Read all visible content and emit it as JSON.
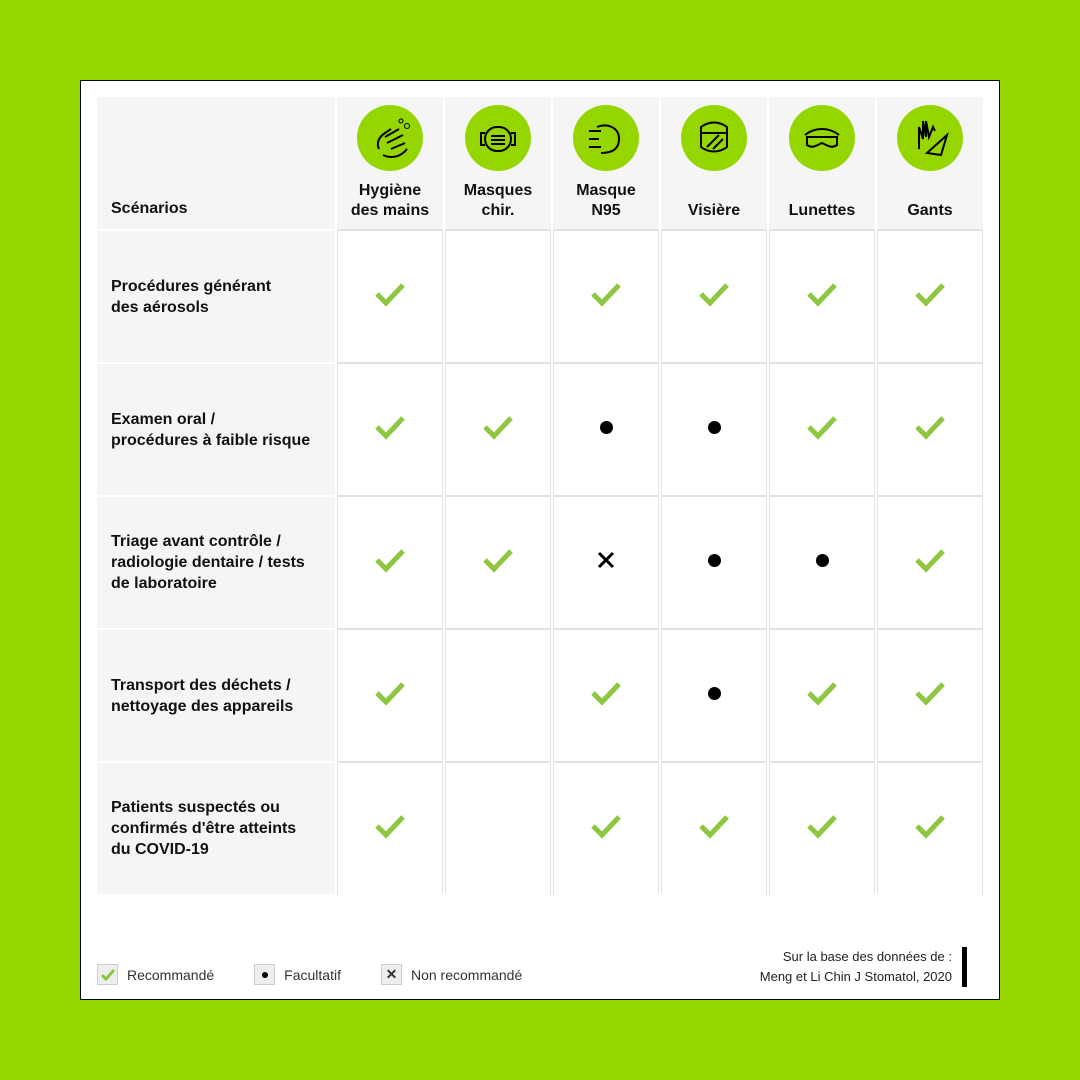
{
  "colors": {
    "accent": "#95d600",
    "check": "#8dc63f"
  },
  "header": {
    "scenarios": "Scénarios",
    "columns": [
      {
        "label1": "Hygiène",
        "label2": "des mains",
        "icon": "hand-wash-icon"
      },
      {
        "label1": "Masques",
        "label2": "chir.",
        "icon": "surgical-mask-icon"
      },
      {
        "label1": "Masque",
        "label2": "N95",
        "icon": "n95-mask-icon"
      },
      {
        "label1": "",
        "label2": "Visière",
        "icon": "face-shield-icon"
      },
      {
        "label1": "",
        "label2": "Lunettes",
        "icon": "goggles-icon"
      },
      {
        "label1": "",
        "label2": "Gants",
        "icon": "gloves-icon"
      }
    ]
  },
  "rows": [
    {
      "lines": [
        "Procédures générant",
        "des aérosols"
      ],
      "values": [
        "check",
        "",
        "check",
        "check",
        "check",
        "check"
      ]
    },
    {
      "lines": [
        "Examen oral /",
        "procédures à faible risque"
      ],
      "values": [
        "check",
        "check",
        "dot",
        "dot",
        "check",
        "check"
      ]
    },
    {
      "lines": [
        "Triage avant contrôle /",
        "radiologie dentaire / tests",
        "de laboratoire"
      ],
      "values": [
        "check",
        "check",
        "cross",
        "dot",
        "dot",
        "check"
      ]
    },
    {
      "lines": [
        "Transport des déchets /",
        "nettoyage des appareils"
      ],
      "values": [
        "check",
        "",
        "check",
        "dot",
        "check",
        "check"
      ]
    },
    {
      "lines": [
        "Patients suspectés ou",
        "confirmés d'être atteints",
        "du COVID-19"
      ],
      "values": [
        "check",
        "",
        "check",
        "check",
        "check",
        "check"
      ]
    }
  ],
  "legend": {
    "recommended": "Recommandé",
    "optional": "Facultatif",
    "not_recommended": "Non recommandé"
  },
  "source": {
    "line1": "Sur la base des données de :",
    "line2": "Meng et Li Chin J Stomatol, 2020"
  }
}
